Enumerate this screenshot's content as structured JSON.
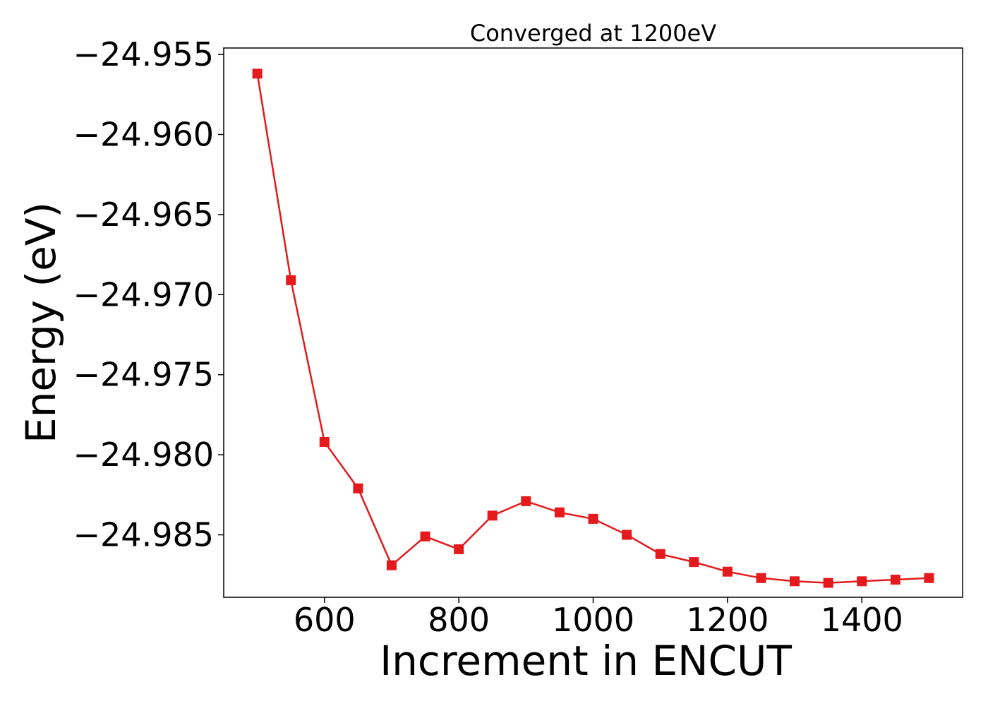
{
  "chart_data": {
    "type": "line",
    "title": "Converged at 1200eV",
    "xlabel": "Increment in ENCUT",
    "ylabel": "Energy (eV)",
    "xlim": [
      450,
      1550
    ],
    "ylim": [
      -24.9889,
      -24.9546
    ],
    "xticks": [
      600,
      800,
      1000,
      1200,
      1400
    ],
    "xtick_labels": [
      "600",
      "800",
      "1000",
      "1200",
      "1400"
    ],
    "yticks": [
      -24.955,
      -24.96,
      -24.965,
      -24.97,
      -24.975,
      -24.98,
      -24.985
    ],
    "ytick_labels": [
      "−24.955",
      "−24.960",
      "−24.965",
      "−24.970",
      "−24.975",
      "−24.980",
      "−24.985"
    ],
    "grid": false,
    "series": [
      {
        "color": "#e41a1c",
        "marker": "square",
        "x": [
          500,
          550,
          600,
          650,
          700,
          750,
          800,
          850,
          900,
          950,
          1000,
          1050,
          1100,
          1150,
          1200,
          1250,
          1300,
          1350,
          1400,
          1450,
          1500
        ],
        "y": [
          -24.9562,
          -24.9691,
          -24.9792,
          -24.9821,
          -24.9869,
          -24.9851,
          -24.9859,
          -24.9838,
          -24.9829,
          -24.9836,
          -24.984,
          -24.985,
          -24.9862,
          -24.9867,
          -24.9873,
          -24.9877,
          -24.9879,
          -24.988,
          -24.9879,
          -24.9878,
          -24.9877
        ]
      }
    ]
  }
}
